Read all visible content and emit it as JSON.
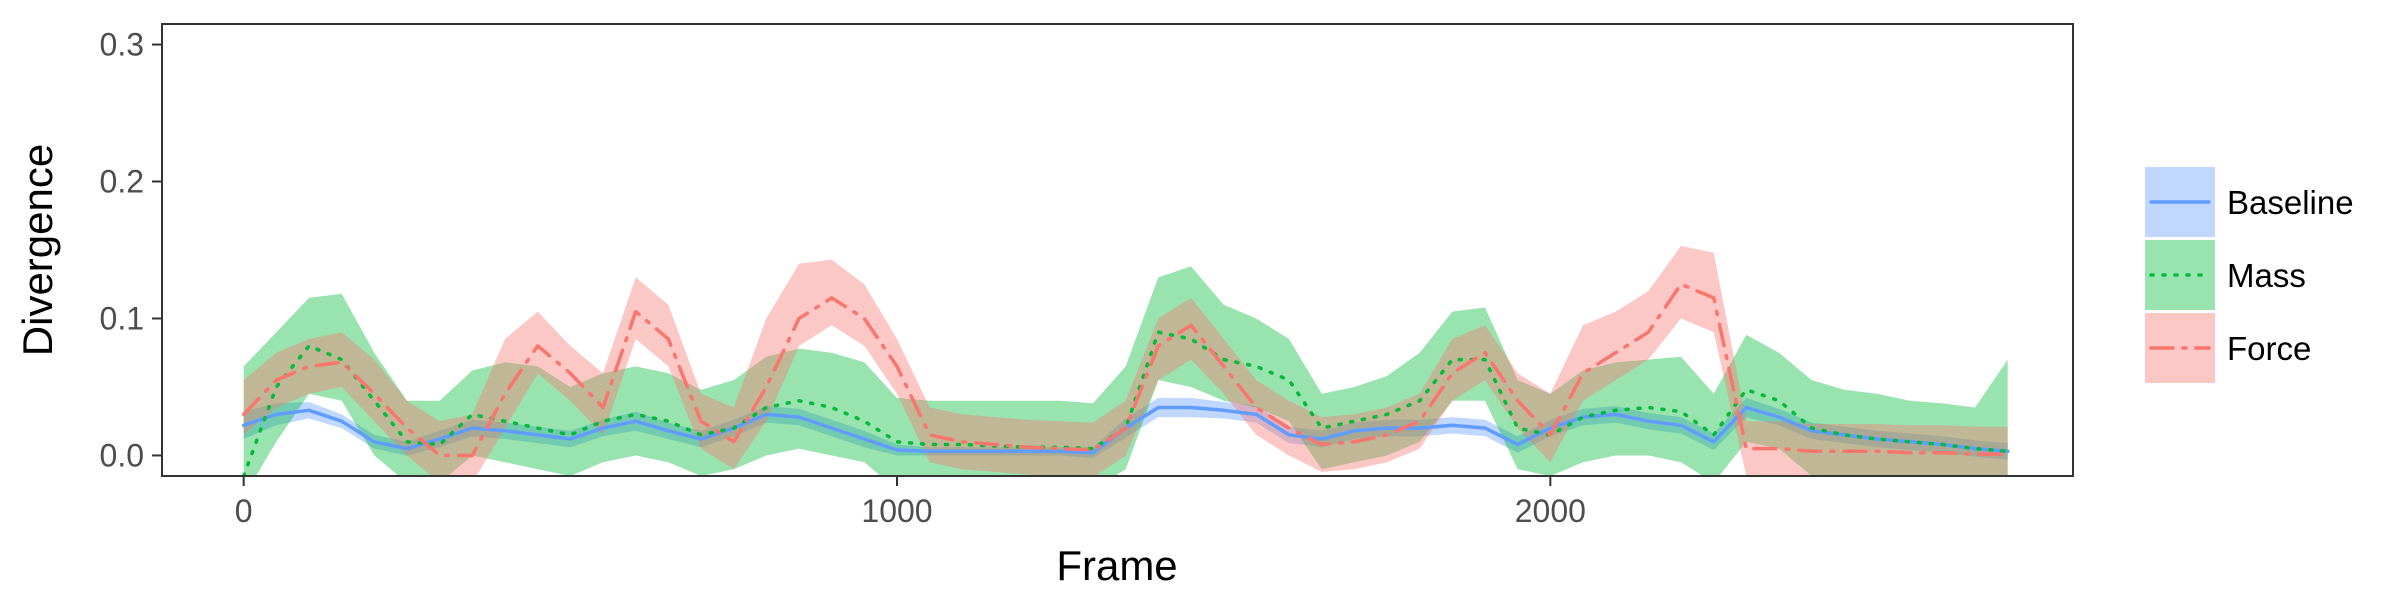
{
  "chart_data": {
    "type": "line",
    "title": "",
    "xlabel": "Frame",
    "ylabel": "Divergence",
    "xlim": [
      -125,
      2800
    ],
    "ylim": [
      -0.015,
      0.315
    ],
    "x_ticks": [
      0,
      1000,
      2000
    ],
    "y_ticks": [
      0.0,
      0.1,
      0.2,
      0.3
    ],
    "x_tick_labels": [
      "0",
      "1000",
      "2000"
    ],
    "y_tick_labels": [
      "0.0",
      "0.1",
      "0.2",
      "0.3"
    ],
    "grid": false,
    "legend_position": "right",
    "x": [
      0,
      50,
      100,
      150,
      200,
      250,
      300,
      350,
      400,
      450,
      500,
      550,
      600,
      650,
      700,
      750,
      800,
      850,
      900,
      950,
      1000,
      1050,
      1100,
      1150,
      1200,
      1250,
      1300,
      1350,
      1400,
      1450,
      1500,
      1550,
      1600,
      1650,
      1700,
      1750,
      1800,
      1850,
      1900,
      1950,
      2000,
      2050,
      2100,
      2150,
      2200,
      2250,
      2300,
      2350,
      2400,
      2450,
      2500,
      2550,
      2600,
      2650,
      2700
    ],
    "series": [
      {
        "name": "Baseline",
        "color": "#619CFF",
        "line_style": "solid",
        "values": [
          0.022,
          0.03,
          0.033,
          0.025,
          0.01,
          0.005,
          0.012,
          0.02,
          0.018,
          0.015,
          0.012,
          0.02,
          0.025,
          0.018,
          0.012,
          0.02,
          0.03,
          0.028,
          0.02,
          0.012,
          0.004,
          0.003,
          0.003,
          0.003,
          0.003,
          0.003,
          0.002,
          0.02,
          0.035,
          0.035,
          0.033,
          0.03,
          0.015,
          0.012,
          0.018,
          0.02,
          0.02,
          0.022,
          0.02,
          0.008,
          0.02,
          0.028,
          0.03,
          0.025,
          0.022,
          0.01,
          0.035,
          0.028,
          0.018,
          0.015,
          0.012,
          0.01,
          0.008,
          0.005,
          0.003
        ],
        "lower": [
          0.012,
          0.022,
          0.027,
          0.02,
          0.005,
          0.0,
          0.006,
          0.014,
          0.012,
          0.009,
          0.006,
          0.014,
          0.018,
          0.012,
          0.006,
          0.014,
          0.024,
          0.022,
          0.014,
          0.006,
          0.0,
          0.0,
          0.0,
          0.0,
          0.0,
          0.0,
          -0.002,
          0.013,
          0.028,
          0.028,
          0.027,
          0.024,
          0.009,
          0.006,
          0.012,
          0.014,
          0.014,
          0.016,
          0.014,
          0.002,
          0.014,
          0.022,
          0.024,
          0.019,
          0.016,
          0.004,
          0.028,
          0.022,
          0.012,
          0.009,
          0.006,
          0.004,
          0.002,
          -0.001,
          -0.003
        ],
        "upper": [
          0.032,
          0.038,
          0.039,
          0.03,
          0.015,
          0.01,
          0.018,
          0.026,
          0.024,
          0.021,
          0.018,
          0.026,
          0.032,
          0.024,
          0.018,
          0.026,
          0.036,
          0.034,
          0.026,
          0.018,
          0.008,
          0.006,
          0.006,
          0.006,
          0.006,
          0.006,
          0.006,
          0.027,
          0.042,
          0.042,
          0.039,
          0.036,
          0.021,
          0.018,
          0.024,
          0.026,
          0.026,
          0.028,
          0.026,
          0.014,
          0.026,
          0.034,
          0.036,
          0.031,
          0.028,
          0.016,
          0.042,
          0.034,
          0.024,
          0.021,
          0.018,
          0.016,
          0.014,
          0.011,
          0.009
        ]
      },
      {
        "name": "Mass",
        "color": "#00BA38",
        "line_style": "dotted",
        "values": [
          -0.015,
          0.05,
          0.08,
          0.07,
          0.04,
          0.01,
          0.008,
          0.03,
          0.025,
          0.02,
          0.015,
          0.025,
          0.03,
          0.025,
          0.015,
          0.02,
          0.035,
          0.04,
          0.035,
          0.025,
          0.01,
          0.008,
          0.008,
          0.007,
          0.006,
          0.006,
          0.005,
          0.02,
          0.09,
          0.085,
          0.07,
          0.065,
          0.055,
          0.02,
          0.025,
          0.03,
          0.04,
          0.07,
          0.07,
          0.02,
          0.015,
          0.028,
          0.033,
          0.035,
          0.032,
          0.015,
          0.048,
          0.04,
          0.02,
          0.015,
          0.012,
          0.01,
          0.008,
          0.005,
          0.003
        ],
        "lower": [
          -0.03,
          0.01,
          0.045,
          0.04,
          0.0,
          -0.02,
          -0.02,
          0.0,
          -0.005,
          -0.01,
          -0.015,
          -0.005,
          0.0,
          -0.005,
          -0.015,
          -0.01,
          0.0,
          0.005,
          0.0,
          -0.005,
          -0.025,
          -0.025,
          -0.025,
          -0.025,
          -0.025,
          -0.025,
          -0.025,
          -0.01,
          0.055,
          0.05,
          0.04,
          0.035,
          0.025,
          -0.01,
          -0.005,
          0.0,
          0.01,
          0.04,
          0.04,
          -0.01,
          -0.015,
          -0.005,
          0.0,
          0.0,
          -0.005,
          -0.02,
          0.01,
          0.005,
          -0.015,
          -0.02,
          -0.025,
          -0.025,
          -0.025,
          -0.025,
          -0.025
        ],
        "upper": [
          0.065,
          0.09,
          0.115,
          0.118,
          0.075,
          0.04,
          0.04,
          0.062,
          0.068,
          0.065,
          0.05,
          0.06,
          0.065,
          0.06,
          0.048,
          0.055,
          0.072,
          0.078,
          0.075,
          0.068,
          0.042,
          0.04,
          0.04,
          0.04,
          0.04,
          0.04,
          0.038,
          0.065,
          0.13,
          0.138,
          0.11,
          0.1,
          0.085,
          0.045,
          0.05,
          0.058,
          0.075,
          0.105,
          0.108,
          0.055,
          0.045,
          0.062,
          0.068,
          0.07,
          0.072,
          0.045,
          0.088,
          0.075,
          0.055,
          0.048,
          0.045,
          0.04,
          0.038,
          0.035,
          0.07
        ]
      },
      {
        "name": "Force",
        "color": "#F8766D",
        "line_style": "dashdot",
        "values": [
          0.03,
          0.055,
          0.065,
          0.068,
          0.045,
          0.02,
          0.0,
          0.0,
          0.045,
          0.08,
          0.06,
          0.035,
          0.105,
          0.085,
          0.025,
          0.01,
          0.05,
          0.1,
          0.115,
          0.1,
          0.065,
          0.015,
          0.01,
          0.008,
          0.006,
          0.005,
          0.004,
          0.02,
          0.08,
          0.095,
          0.065,
          0.035,
          0.02,
          0.008,
          0.01,
          0.015,
          0.025,
          0.06,
          0.075,
          0.04,
          0.015,
          0.06,
          0.075,
          0.09,
          0.125,
          0.115,
          0.005,
          0.005,
          0.003,
          0.003,
          0.003,
          0.002,
          0.002,
          0.001,
          0.001
        ],
        "lower": [
          0.015,
          0.035,
          0.045,
          0.05,
          0.025,
          0.0,
          -0.02,
          -0.02,
          0.02,
          0.06,
          0.04,
          0.015,
          0.085,
          0.065,
          0.005,
          -0.01,
          0.025,
          0.08,
          0.095,
          0.08,
          0.045,
          -0.005,
          -0.01,
          -0.012,
          -0.014,
          -0.015,
          -0.016,
          0.0,
          0.055,
          0.07,
          0.045,
          0.015,
          0.0,
          -0.012,
          -0.01,
          -0.005,
          0.005,
          0.04,
          0.055,
          0.02,
          -0.005,
          0.04,
          0.055,
          0.07,
          0.1,
          0.09,
          -0.015,
          -0.015,
          -0.017,
          -0.017,
          -0.017,
          -0.018,
          -0.018,
          -0.019,
          -0.019
        ],
        "upper": [
          0.055,
          0.075,
          0.085,
          0.09,
          0.07,
          0.04,
          0.025,
          0.03,
          0.085,
          0.105,
          0.08,
          0.06,
          0.13,
          0.11,
          0.045,
          0.035,
          0.1,
          0.14,
          0.143,
          0.125,
          0.085,
          0.035,
          0.03,
          0.028,
          0.026,
          0.025,
          0.024,
          0.04,
          0.1,
          0.115,
          0.085,
          0.055,
          0.04,
          0.028,
          0.03,
          0.035,
          0.045,
          0.085,
          0.095,
          0.06,
          0.045,
          0.095,
          0.105,
          0.12,
          0.153,
          0.148,
          0.025,
          0.025,
          0.023,
          0.023,
          0.023,
          0.022,
          0.022,
          0.021,
          0.021
        ]
      }
    ]
  }
}
